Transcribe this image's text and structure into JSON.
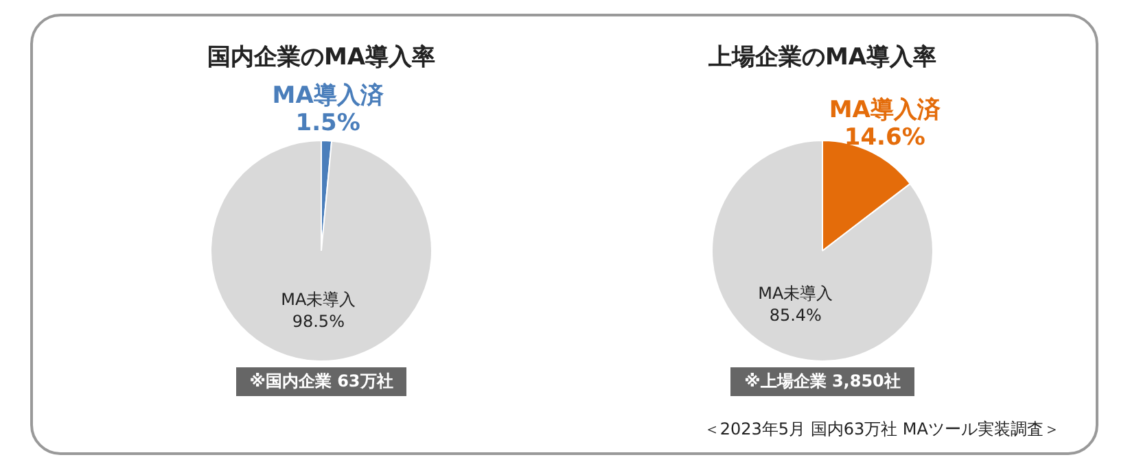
{
  "chart_data": [
    {
      "type": "pie",
      "title": "国内企業のMA導入率",
      "categories": [
        "MA導入済",
        "MA未導入"
      ],
      "values": [
        1.5,
        98.5
      ],
      "value_labels": [
        "1.5%",
        "98.5%"
      ],
      "colors": [
        "#4a7ebb",
        "#d9d9d9"
      ],
      "legend": false,
      "annotations": [
        "※国内企業 63万社"
      ]
    },
    {
      "type": "pie",
      "title": "上場企業のMA導入率",
      "categories": [
        "MA導入済",
        "MA未導入"
      ],
      "values": [
        14.6,
        85.4
      ],
      "value_labels": [
        "14.6%",
        "85.4%"
      ],
      "colors": [
        "#e46c0a",
        "#d9d9d9"
      ],
      "legend": false,
      "annotations": [
        "※上場企業 3,850社",
        "＜2023年5月 国内63万社 MAツール実装調査＞"
      ]
    }
  ]
}
